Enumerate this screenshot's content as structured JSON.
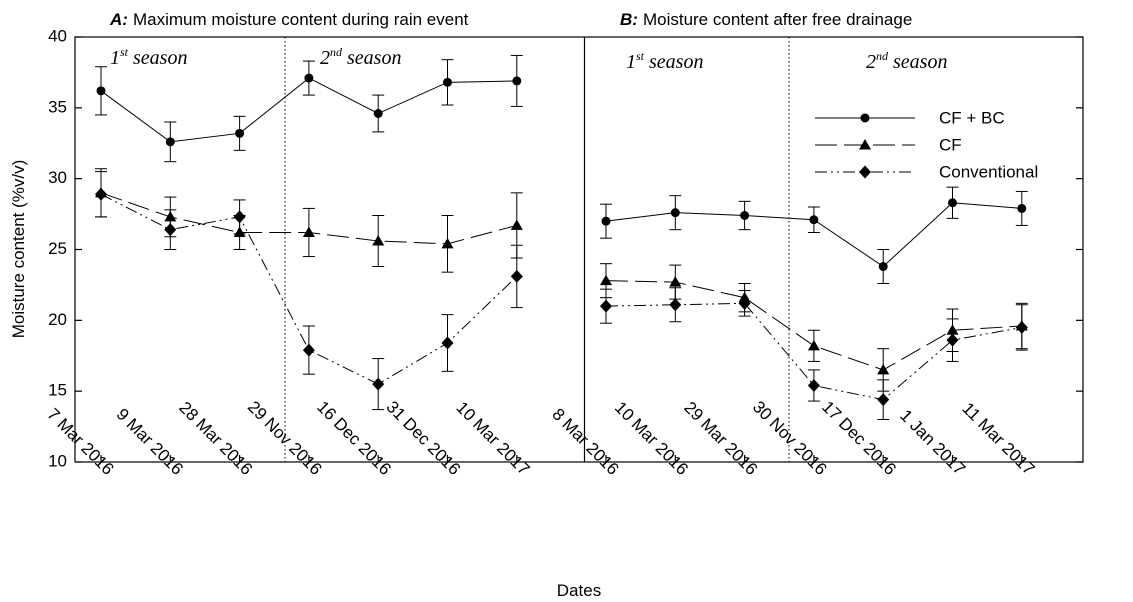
{
  "chart_data": [
    {
      "panel": "A",
      "type": "line",
      "title_letter": "A:",
      "title": "Maximum moisture content during rain event",
      "categories": [
        "7 Mar 2016",
        "9 Mar 2016",
        "28 Mar 2016",
        "29 Nov 2016",
        "16 Dec 2016",
        "31 Dec 2016",
        "10 Mar 2017"
      ],
      "season_labels": [
        {
          "num": "1",
          "sup": "st",
          "text": " season"
        },
        {
          "num": "2",
          "sup": "nd",
          "text": " season"
        }
      ],
      "ylabel": "Moisture content (%v/v)",
      "ylim": [
        10,
        40
      ],
      "yticks": [
        10,
        15,
        20,
        25,
        30,
        35,
        40
      ],
      "series": [
        {
          "name": "CF + BC",
          "marker": "circle",
          "dash": "solid",
          "values": [
            36.2,
            32.6,
            33.2,
            37.1,
            34.6,
            36.8,
            36.9
          ],
          "errors": [
            1.7,
            1.4,
            1.2,
            1.2,
            1.3,
            1.6,
            1.8
          ]
        },
        {
          "name": "CF",
          "marker": "triangle",
          "dash": "long-dash",
          "values": [
            29.0,
            27.3,
            26.2,
            26.2,
            25.6,
            25.4,
            26.7
          ],
          "errors": [
            1.7,
            1.4,
            1.2,
            1.7,
            1.8,
            2.0,
            2.3
          ]
        },
        {
          "name": "Conventional",
          "marker": "diamond",
          "dash": "dash-dot-dot",
          "values": [
            28.9,
            26.4,
            27.3,
            17.9,
            15.5,
            18.4,
            23.1
          ],
          "errors": [
            1.6,
            1.4,
            1.2,
            1.7,
            1.8,
            2.0,
            2.2
          ]
        }
      ]
    },
    {
      "panel": "B",
      "type": "line",
      "title_letter": "B:",
      "title": "Moisture content after free drainage",
      "categories": [
        "8 Mar 2016",
        "10 Mar 2016",
        "29 Mar 2016",
        "30 Nov 2016",
        "17 Dec 2016",
        "1 Jan 2017",
        "11 Mar 2017"
      ],
      "season_labels": [
        {
          "num": "1",
          "sup": "st",
          "text": " season"
        },
        {
          "num": "2",
          "sup": "nd",
          "text": " season"
        }
      ],
      "ylim": [
        10,
        40
      ],
      "series": [
        {
          "name": "CF + BC",
          "marker": "circle",
          "dash": "solid",
          "values": [
            27.0,
            27.6,
            27.4,
            27.1,
            23.8,
            28.3,
            27.9
          ],
          "errors": [
            1.2,
            1.2,
            1.0,
            0.9,
            1.2,
            1.1,
            1.2
          ]
        },
        {
          "name": "CF",
          "marker": "triangle",
          "dash": "long-dash",
          "values": [
            22.8,
            22.7,
            21.6,
            18.2,
            16.5,
            19.3,
            19.6
          ],
          "errors": [
            1.2,
            1.2,
            1.0,
            1.1,
            1.5,
            1.5,
            1.6
          ]
        },
        {
          "name": "Conventional",
          "marker": "diamond",
          "dash": "dash-dot-dot",
          "values": [
            21.0,
            21.1,
            21.2,
            15.4,
            14.4,
            18.6,
            19.5
          ],
          "errors": [
            1.2,
            1.2,
            0.9,
            1.1,
            1.4,
            1.5,
            1.6
          ]
        }
      ]
    }
  ],
  "xlabel": "Dates",
  "legend": {
    "placement": "panel-B upper-right",
    "entries": [
      "CF + BC",
      "CF",
      "Conventional"
    ]
  }
}
